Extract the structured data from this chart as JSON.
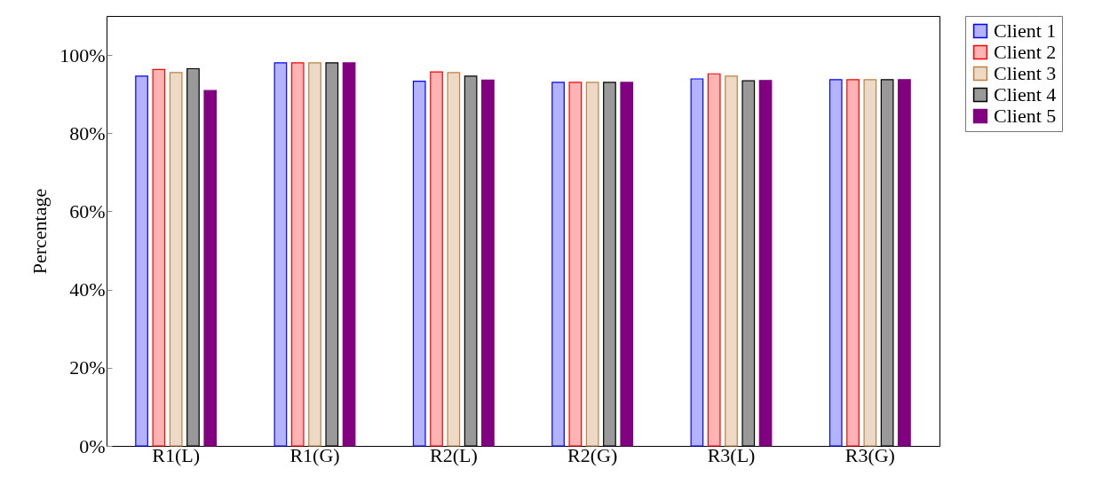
{
  "chart_data": {
    "type": "bar",
    "ylabel": "Percentage",
    "categories": [
      "R1(L)",
      "R1(G)",
      "R2(L)",
      "R2(G)",
      "R3(L)",
      "R3(G)"
    ],
    "series": [
      {
        "name": "Client 1",
        "color": "#b3b3ff",
        "values": [
          94.6,
          98.0,
          93.3,
          93.0,
          93.9,
          93.7
        ]
      },
      {
        "name": "Client 2",
        "color": "#ffb3b3",
        "values": [
          96.3,
          98.0,
          95.7,
          93.0,
          95.2,
          93.7
        ]
      },
      {
        "name": "Client 3",
        "color": "#ecd9c6",
        "values": [
          95.5,
          98.0,
          95.5,
          93.0,
          94.6,
          93.7
        ]
      },
      {
        "name": "Client 4",
        "color": "#999999",
        "values": [
          96.5,
          98.0,
          94.6,
          93.0,
          93.4,
          93.7
        ]
      },
      {
        "name": "Client 5",
        "color": "#800080",
        "values": [
          90.9,
          98.0,
          93.6,
          93.0,
          93.5,
          93.7
        ]
      }
    ],
    "ylim": [
      0,
      110
    ],
    "yticks": [
      {
        "value": 0,
        "label": "0%"
      },
      {
        "value": 20,
        "label": "20%"
      },
      {
        "value": 40,
        "label": "40%"
      },
      {
        "value": 60,
        "label": "60%"
      },
      {
        "value": 80,
        "label": "80%"
      },
      {
        "value": 100,
        "label": "100%"
      }
    ],
    "grid": false,
    "legend": "top right"
  }
}
